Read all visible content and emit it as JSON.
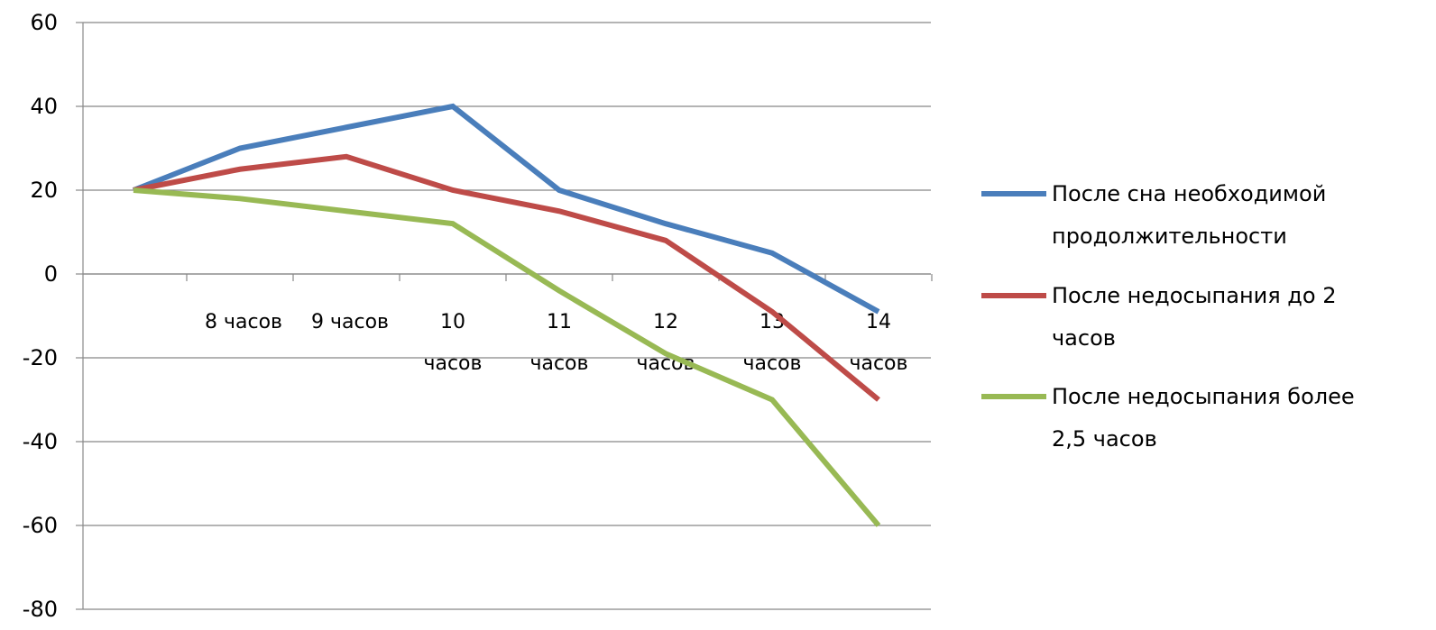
{
  "chart_data": {
    "type": "line",
    "title": "",
    "xlabel": "",
    "ylabel": "",
    "ylim": [
      -80,
      60
    ],
    "y_ticks": [
      "60",
      "40",
      "20",
      "0",
      "-20",
      "-40",
      "-60",
      "-80"
    ],
    "categories": [
      [
        "",
        ""
      ],
      [
        "8 часов",
        ""
      ],
      [
        "9 часов",
        ""
      ],
      [
        "10",
        "часов"
      ],
      [
        "11",
        "часов"
      ],
      [
        "12",
        "часов"
      ],
      [
        "13",
        "часов"
      ],
      [
        "14",
        "часов"
      ]
    ],
    "grid": true,
    "legend_position": "right",
    "series": [
      {
        "name": [
          "После сна необходимой",
          "продолжительности"
        ],
        "color": "#4a7ebb",
        "values": [
          20,
          30,
          35,
          40,
          20,
          12,
          5,
          -9
        ]
      },
      {
        "name": [
          "После недосыпания до  2",
          "часов"
        ],
        "color": "#be4b48",
        "values": [
          20,
          25,
          28,
          20,
          15,
          8,
          -9,
          -30
        ]
      },
      {
        "name": [
          "После недосыпания более",
          "2,5 часов"
        ],
        "color": "#98b954",
        "values": [
          20,
          18,
          15,
          12,
          -4,
          -19,
          -30,
          -60
        ]
      }
    ]
  }
}
